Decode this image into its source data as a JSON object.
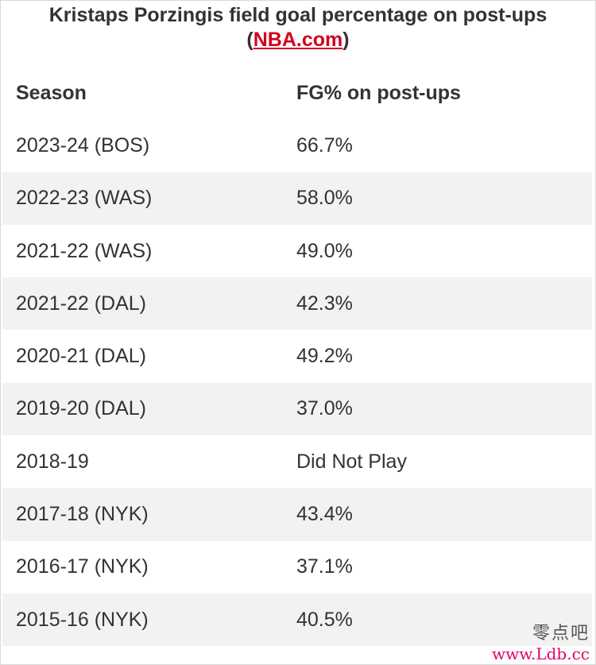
{
  "title": {
    "main": "Kristaps Porzingis field goal percentage on post-ups",
    "source_open": "(",
    "source_link": "NBA.com",
    "source_close": ")"
  },
  "table": {
    "headers": [
      "Season",
      "FG% on post-ups"
    ],
    "rows": [
      [
        "2023-24 (BOS)",
        "66.7%"
      ],
      [
        "2022-23 (WAS)",
        "58.0%"
      ],
      [
        "2021-22 (WAS)",
        "49.0%"
      ],
      [
        "2021-22 (DAL)",
        "42.3%"
      ],
      [
        "2020-21 (DAL)",
        "49.2%"
      ],
      [
        "2019-20 (DAL)",
        "37.0%"
      ],
      [
        "2018-19",
        "Did Not Play"
      ],
      [
        "2017-18 (NYK)",
        "43.4%"
      ],
      [
        "2016-17 (NYK)",
        "37.1%"
      ],
      [
        "2015-16 (NYK)",
        "40.5%"
      ]
    ]
  },
  "watermark": {
    "text": "零点吧",
    "url": "www.Ldb.cc"
  },
  "colors": {
    "link": "#d0021b",
    "row_stripe": "#f2f2f2",
    "watermark_url": "#e0006a"
  }
}
